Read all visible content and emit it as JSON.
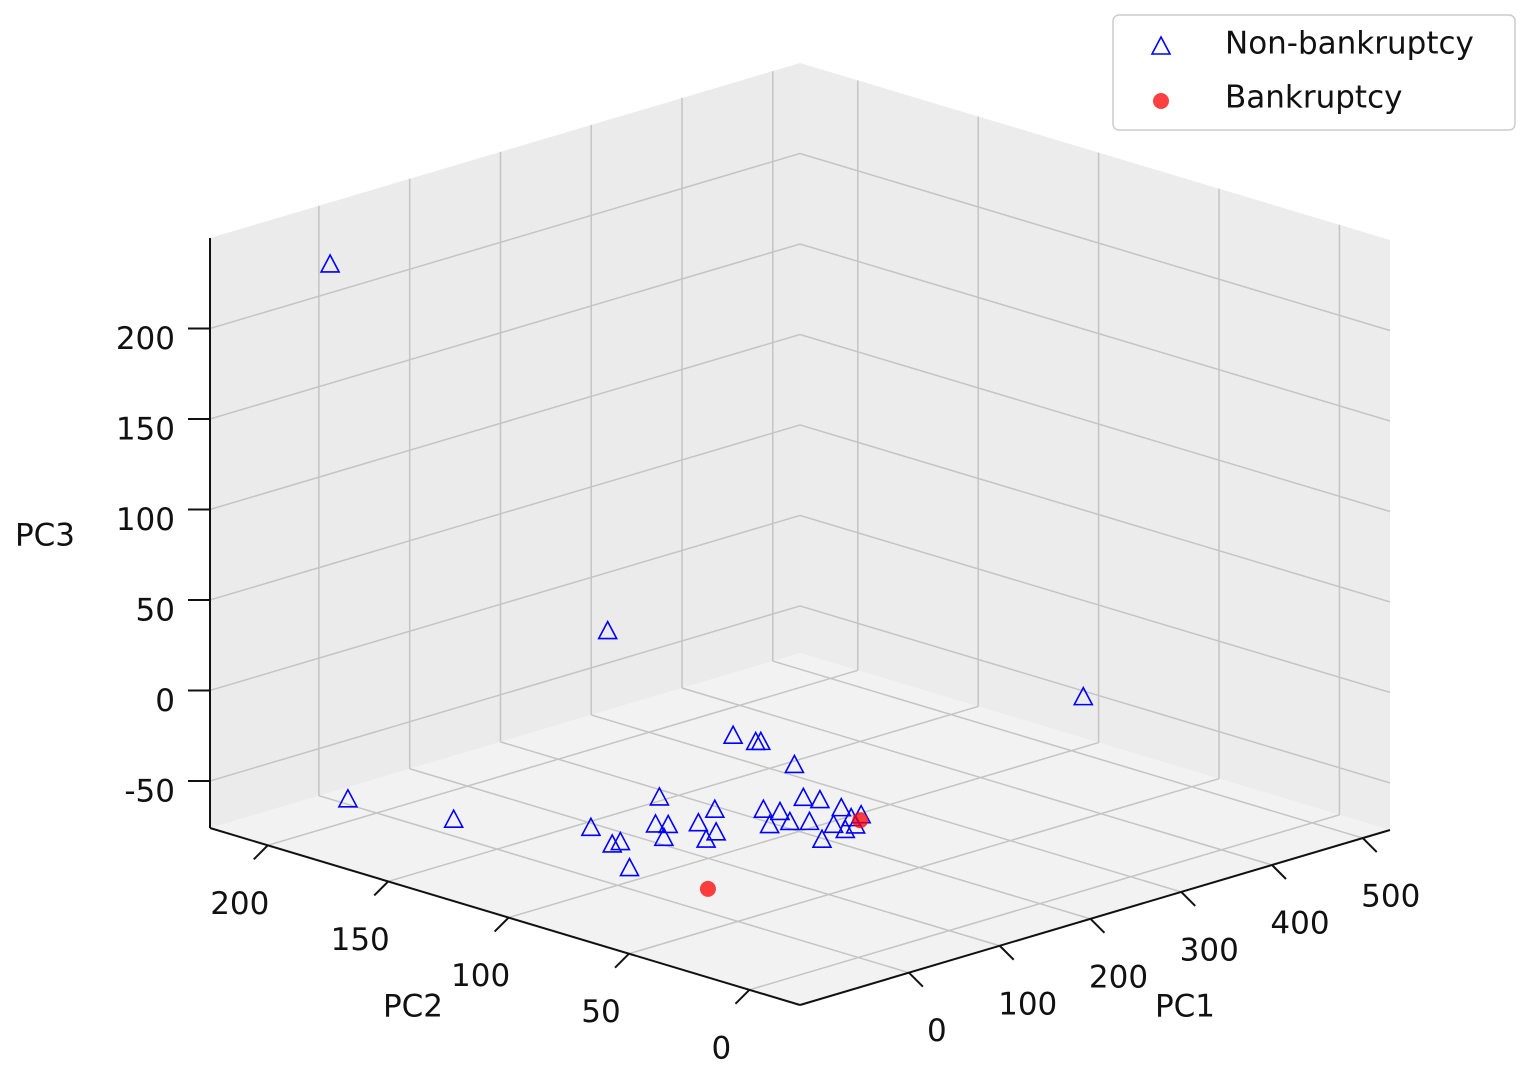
{
  "chart_data": {
    "type": "scatter3d",
    "xlabel": "PC1",
    "ylabel": "PC2",
    "zlabel": "PC3",
    "xlim": [
      -120,
      530
    ],
    "ylim": [
      -21,
      224
    ],
    "zlim": [
      -76,
      250
    ],
    "xticks": [
      0,
      100,
      200,
      300,
      400,
      500
    ],
    "yticks": [
      0,
      50,
      100,
      150,
      200
    ],
    "zticks": [
      -50,
      0,
      50,
      100,
      150,
      200
    ],
    "grid": true,
    "legend": "upper right",
    "series": [
      {
        "name": "Non-bankruptcy",
        "color": "#0000ff",
        "marker": "triangle",
        "x": [
          7,
          82,
          277,
          -45,
          -24,
          37,
          18,
          27,
          -16,
          131,
          79,
          85,
          59,
          105,
          139,
          98,
          79,
          122,
          123,
          126,
          102,
          166,
          141,
          171,
          210,
          215,
          143,
          212,
          199,
          177,
          188,
          174,
          169,
          158,
          210
        ],
        "y": [
          222,
          135,
          11,
          195,
          159,
          125,
          109,
          109,
          89,
          132,
          114,
          111,
          103,
          106,
          112,
          96,
          93,
          98,
          89,
          88,
          65,
          102,
          90,
          97,
          102,
          97,
          69,
          87,
          78,
          77,
          72,
          71,
          84,
          88,
          78
        ],
        "z": [
          217,
          38,
          22,
          -60,
          -60,
          -60,
          -60,
          -60,
          -60,
          -60,
          -60,
          -60,
          -60,
          -60,
          -60,
          -60,
          -60,
          -11,
          -11,
          -11,
          -11,
          -60,
          -60,
          -60,
          -60,
          -60,
          -60,
          -60,
          -60,
          -60,
          -60,
          -60,
          -60,
          -60,
          -60
        ]
      },
      {
        "name": "Bankruptcy",
        "color": "#ff0000",
        "marker": "circle",
        "x": [
          20,
          201
        ],
        "y": [
          70,
          75
        ],
        "z": [
          -69,
          -60
        ]
      }
    ]
  }
}
